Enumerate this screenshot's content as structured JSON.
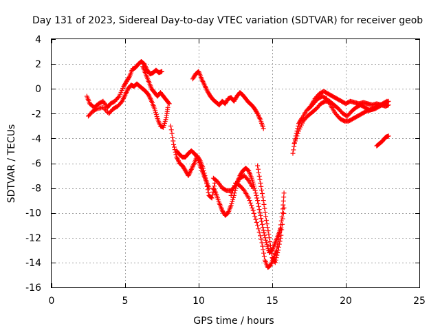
{
  "chart_data": {
    "type": "scatter",
    "title": "Day 131 of 2023, Sidereal Day-to-day VTEC variation (SDTVAR) for receiver geob",
    "xlabel": "GPS time / hours",
    "ylabel": "SDTVAR / TECUs",
    "xlim": [
      0,
      25
    ],
    "ylim": [
      -16,
      4
    ],
    "x_ticks": [
      0,
      5,
      10,
      15,
      20,
      25
    ],
    "y_ticks": [
      4,
      2,
      0,
      -2,
      -4,
      -6,
      -8,
      -10,
      -12,
      -14,
      -16
    ],
    "grid": true,
    "marker": "plus",
    "series_color": "#ff0000",
    "series": [
      {
        "values": [
          [
            2.4,
            -0.6
          ],
          [
            2.6,
            -1.2
          ],
          [
            2.9,
            -1.5
          ],
          [
            3.2,
            -1.2
          ],
          [
            3.5,
            -1.0
          ],
          [
            3.8,
            -1.5
          ],
          [
            4.0,
            -1.2
          ],
          [
            4.3,
            -1.0
          ],
          [
            4.6,
            -0.6
          ],
          [
            4.9,
            0.2
          ],
          [
            5.1,
            0.6
          ],
          [
            5.3,
            1.0
          ],
          [
            5.5,
            1.6
          ],
          [
            5.7,
            1.7
          ],
          [
            5.9,
            2.0
          ],
          [
            6.1,
            2.2
          ],
          [
            6.3,
            2.0
          ],
          [
            6.5,
            1.5
          ],
          [
            6.7,
            1.2
          ],
          [
            6.9,
            1.3
          ],
          [
            7.1,
            1.5
          ],
          [
            7.3,
            1.3
          ],
          [
            7.5,
            1.4
          ]
        ]
      },
      {
        "values": [
          [
            2.5,
            -2.2
          ],
          [
            2.8,
            -1.8
          ],
          [
            3.1,
            -1.6
          ],
          [
            3.5,
            -1.5
          ],
          [
            3.9,
            -2.0
          ],
          [
            4.2,
            -1.6
          ],
          [
            4.5,
            -1.4
          ],
          [
            4.8,
            -1.0
          ],
          [
            5.0,
            -0.5
          ],
          [
            5.2,
            0.0
          ],
          [
            5.4,
            0.3
          ],
          [
            5.6,
            0.2
          ],
          [
            5.8,
            0.4
          ],
          [
            6.0,
            0.2
          ],
          [
            6.2,
            0.0
          ],
          [
            6.4,
            -0.2
          ],
          [
            6.6,
            -0.5
          ],
          [
            6.8,
            -1.0
          ],
          [
            7.0,
            -1.6
          ],
          [
            7.2,
            -2.4
          ],
          [
            7.4,
            -3.0
          ],
          [
            7.6,
            -3.1
          ],
          [
            7.8,
            -2.3
          ],
          [
            7.9,
            -1.5
          ]
        ]
      },
      {
        "values": [
          [
            6.2,
            1.8
          ],
          [
            6.4,
            1.2
          ],
          [
            6.6,
            0.6
          ],
          [
            6.8,
            0.0
          ],
          [
            7.0,
            -0.3
          ],
          [
            7.2,
            -0.6
          ],
          [
            7.4,
            -0.3
          ],
          [
            7.6,
            -0.6
          ],
          [
            7.8,
            -0.9
          ],
          [
            8.0,
            -1.2
          ]
        ]
      },
      {
        "values": [
          [
            8.1,
            -3.0
          ],
          [
            8.3,
            -4.5
          ],
          [
            8.5,
            -5.5
          ],
          [
            8.7,
            -6.0
          ],
          [
            8.9,
            -6.2
          ],
          [
            9.1,
            -6.6
          ],
          [
            9.3,
            -7.0
          ],
          [
            9.5,
            -6.5
          ],
          [
            9.7,
            -6.0
          ],
          [
            9.9,
            -5.4
          ],
          [
            10.1,
            -5.8
          ],
          [
            10.3,
            -6.4
          ],
          [
            10.5,
            -7.4
          ],
          [
            10.7,
            -8.6
          ],
          [
            10.9,
            -8.8
          ],
          [
            11.1,
            -7.6
          ]
        ]
      },
      {
        "values": [
          [
            8.5,
            -5.0
          ],
          [
            8.7,
            -5.3
          ],
          [
            8.9,
            -5.5
          ],
          [
            9.1,
            -5.5
          ],
          [
            9.3,
            -5.2
          ],
          [
            9.5,
            -5.0
          ],
          [
            9.7,
            -5.2
          ],
          [
            9.9,
            -5.5
          ],
          [
            10.1,
            -6.2
          ],
          [
            10.3,
            -6.8
          ],
          [
            10.5,
            -7.4
          ],
          [
            10.7,
            -8.0
          ]
        ]
      },
      {
        "values": [
          [
            9.6,
            0.8
          ],
          [
            9.8,
            1.2
          ],
          [
            10.0,
            1.4
          ],
          [
            10.2,
            0.8
          ],
          [
            10.4,
            0.3
          ],
          [
            10.6,
            -0.2
          ],
          [
            10.8,
            -0.6
          ],
          [
            11.0,
            -0.9
          ],
          [
            11.2,
            -1.1
          ],
          [
            11.4,
            -1.3
          ],
          [
            11.6,
            -1.0
          ],
          [
            11.8,
            -1.2
          ],
          [
            12.0,
            -0.8
          ],
          [
            12.2,
            -0.7
          ],
          [
            12.4,
            -1.0
          ],
          [
            12.6,
            -0.6
          ],
          [
            12.8,
            -0.3
          ],
          [
            13.0,
            -0.5
          ],
          [
            13.2,
            -0.8
          ],
          [
            13.4,
            -1.1
          ],
          [
            13.6,
            -1.3
          ],
          [
            13.8,
            -1.6
          ],
          [
            14.0,
            -2.0
          ],
          [
            14.2,
            -2.5
          ],
          [
            14.4,
            -3.2
          ]
        ]
      },
      {
        "values": [
          [
            11.0,
            -7.2
          ],
          [
            11.3,
            -7.5
          ],
          [
            11.6,
            -8.0
          ],
          [
            11.9,
            -8.2
          ],
          [
            12.2,
            -8.2
          ],
          [
            12.5,
            -7.8
          ],
          [
            12.8,
            -7.2
          ],
          [
            13.1,
            -7.0
          ],
          [
            13.4,
            -7.4
          ],
          [
            13.7,
            -8.0
          ]
        ]
      },
      {
        "values": [
          [
            11.0,
            -8.0
          ],
          [
            11.2,
            -8.5
          ],
          [
            11.4,
            -9.2
          ],
          [
            11.6,
            -9.8
          ],
          [
            11.8,
            -10.2
          ],
          [
            12.0,
            -10.0
          ],
          [
            12.2,
            -9.4
          ],
          [
            12.4,
            -8.6
          ],
          [
            12.6,
            -7.6
          ],
          [
            12.8,
            -7.0
          ],
          [
            13.0,
            -6.6
          ],
          [
            13.2,
            -6.4
          ],
          [
            13.4,
            -6.6
          ],
          [
            13.6,
            -7.2
          ],
          [
            13.8,
            -8.0
          ],
          [
            14.0,
            -9.0
          ],
          [
            14.2,
            -10.2
          ],
          [
            14.4,
            -11.4
          ],
          [
            14.6,
            -12.4
          ],
          [
            14.8,
            -13.2
          ],
          [
            15.0,
            -13.0
          ],
          [
            15.2,
            -12.4
          ],
          [
            15.4,
            -11.8
          ],
          [
            15.6,
            -11.2
          ]
        ]
      },
      {
        "values": [
          [
            12.2,
            -8.6
          ],
          [
            12.5,
            -7.6
          ],
          [
            12.8,
            -7.8
          ],
          [
            13.1,
            -8.2
          ],
          [
            13.4,
            -8.8
          ],
          [
            13.7,
            -9.8
          ],
          [
            14.0,
            -11.0
          ],
          [
            14.3,
            -12.4
          ],
          [
            14.5,
            -13.8
          ],
          [
            14.7,
            -14.4
          ],
          [
            14.9,
            -14.2
          ],
          [
            15.1,
            -13.6
          ],
          [
            15.3,
            -13.0
          ],
          [
            15.5,
            -11.6
          ],
          [
            15.7,
            -10.0
          ],
          [
            15.8,
            -8.4
          ]
        ]
      },
      {
        "values": [
          [
            14.0,
            -6.2
          ],
          [
            14.2,
            -7.6
          ],
          [
            14.4,
            -9.0
          ],
          [
            14.6,
            -10.6
          ],
          [
            14.8,
            -12.0
          ],
          [
            15.0,
            -13.6
          ],
          [
            15.2,
            -14.0
          ],
          [
            15.4,
            -13.0
          ],
          [
            15.6,
            -11.8
          ],
          [
            15.8,
            -9.6
          ]
        ]
      },
      {
        "values": [
          [
            16.4,
            -5.2
          ],
          [
            16.6,
            -3.8
          ],
          [
            16.8,
            -2.8
          ],
          [
            17.0,
            -2.4
          ],
          [
            17.3,
            -1.8
          ],
          [
            17.6,
            -1.4
          ],
          [
            17.9,
            -0.8
          ],
          [
            18.2,
            -0.4
          ],
          [
            18.5,
            -0.2
          ],
          [
            18.8,
            -0.4
          ],
          [
            19.1,
            -0.6
          ],
          [
            19.4,
            -0.8
          ],
          [
            19.7,
            -1.0
          ],
          [
            20.0,
            -1.2
          ],
          [
            20.3,
            -1.0
          ],
          [
            20.6,
            -1.1
          ],
          [
            20.9,
            -1.2
          ],
          [
            21.2,
            -1.1
          ],
          [
            21.5,
            -1.2
          ],
          [
            21.8,
            -1.3
          ],
          [
            22.1,
            -1.2
          ],
          [
            22.4,
            -1.3
          ],
          [
            22.7,
            -1.4
          ],
          [
            22.9,
            -1.3
          ]
        ]
      },
      {
        "values": [
          [
            16.5,
            -4.4
          ],
          [
            16.8,
            -3.4
          ],
          [
            17.1,
            -2.6
          ],
          [
            17.4,
            -2.2
          ],
          [
            17.7,
            -1.9
          ],
          [
            18.0,
            -1.6
          ],
          [
            18.3,
            -1.2
          ],
          [
            18.6,
            -1.0
          ],
          [
            18.9,
            -1.0
          ],
          [
            19.2,
            -1.3
          ],
          [
            19.5,
            -1.6
          ],
          [
            19.8,
            -2.0
          ],
          [
            20.1,
            -2.2
          ],
          [
            20.4,
            -1.8
          ],
          [
            20.7,
            -1.5
          ],
          [
            21.0,
            -1.3
          ],
          [
            21.3,
            -1.5
          ],
          [
            21.6,
            -1.7
          ],
          [
            21.9,
            -1.6
          ],
          [
            22.2,
            -1.4
          ],
          [
            22.5,
            -1.2
          ],
          [
            22.8,
            -1.0
          ]
        ]
      },
      {
        "values": [
          [
            17.5,
            -1.6
          ],
          [
            17.8,
            -1.2
          ],
          [
            18.1,
            -0.8
          ],
          [
            18.4,
            -0.6
          ],
          [
            18.7,
            -0.8
          ],
          [
            19.0,
            -1.4
          ],
          [
            19.3,
            -2.0
          ],
          [
            19.6,
            -2.4
          ],
          [
            19.9,
            -2.6
          ],
          [
            20.2,
            -2.6
          ],
          [
            20.5,
            -2.4
          ],
          [
            20.8,
            -2.2
          ],
          [
            21.1,
            -2.0
          ],
          [
            21.4,
            -1.8
          ],
          [
            21.7,
            -1.7
          ],
          [
            22.0,
            -1.6
          ],
          [
            22.3,
            -1.4
          ],
          [
            22.6,
            -1.2
          ],
          [
            22.9,
            -1.0
          ]
        ]
      },
      {
        "values": [
          [
            22.1,
            -4.6
          ],
          [
            22.3,
            -4.4
          ],
          [
            22.5,
            -4.2
          ],
          [
            22.7,
            -3.9
          ],
          [
            22.9,
            -3.8
          ]
        ]
      }
    ]
  }
}
